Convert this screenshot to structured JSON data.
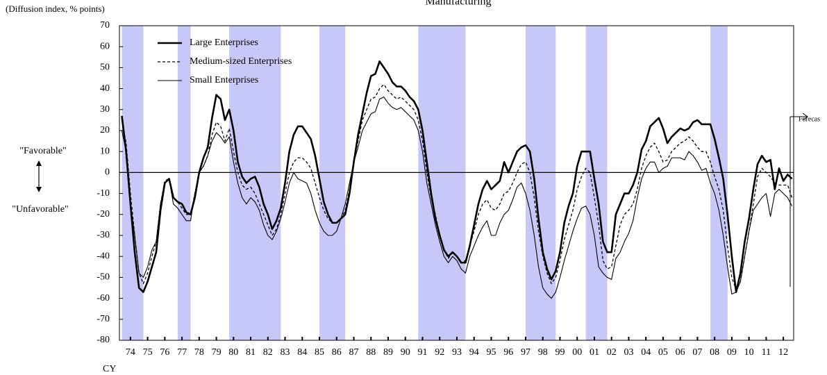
{
  "chart_data": {
    "type": "line",
    "title": "Manufacturing",
    "y_axis_label": "(Diffusion index, % points)",
    "x_axis_label": "CY",
    "annotations": {
      "favorable": "\"Favorable\"",
      "unfavorable": "\"Unfavorable\"",
      "forecast": "Forecas"
    },
    "xlim": [
      1973.86,
      2013.1
    ],
    "ylim": [
      -80,
      70
    ],
    "yticks": [
      70,
      60,
      50,
      40,
      30,
      20,
      10,
      0,
      -10,
      -20,
      -30,
      -40,
      -50,
      -60,
      -70,
      -80
    ],
    "xticks": [
      {
        "value": 1974.5,
        "label": "74"
      },
      {
        "value": 1975.5,
        "label": "75"
      },
      {
        "value": 1976.5,
        "label": "76"
      },
      {
        "value": 1977.5,
        "label": "77"
      },
      {
        "value": 1978.5,
        "label": "78"
      },
      {
        "value": 1979.5,
        "label": "79"
      },
      {
        "value": 1980.5,
        "label": "80"
      },
      {
        "value": 1981.5,
        "label": "81"
      },
      {
        "value": 1982.5,
        "label": "82"
      },
      {
        "value": 1983.5,
        "label": "83"
      },
      {
        "value": 1984.5,
        "label": "84"
      },
      {
        "value": 1985.5,
        "label": "85"
      },
      {
        "value": 1986.5,
        "label": "86"
      },
      {
        "value": 1987.5,
        "label": "87"
      },
      {
        "value": 1988.5,
        "label": "88"
      },
      {
        "value": 1989.5,
        "label": "89"
      },
      {
        "value": 1990.5,
        "label": "90"
      },
      {
        "value": 1991.5,
        "label": "91"
      },
      {
        "value": 1992.5,
        "label": "92"
      },
      {
        "value": 1993.5,
        "label": "93"
      },
      {
        "value": 1994.5,
        "label": "94"
      },
      {
        "value": 1995.5,
        "label": "95"
      },
      {
        "value": 1996.5,
        "label": "96"
      },
      {
        "value": 1997.5,
        "label": "97"
      },
      {
        "value": 1998.5,
        "label": "98"
      },
      {
        "value": 1999.5,
        "label": "99"
      },
      {
        "value": 2000.5,
        "label": "00"
      },
      {
        "value": 2001.5,
        "label": "01"
      },
      {
        "value": 2002.5,
        "label": "02"
      },
      {
        "value": 2003.5,
        "label": "03"
      },
      {
        "value": 2004.5,
        "label": "04"
      },
      {
        "value": 2005.5,
        "label": "05"
      },
      {
        "value": 2006.5,
        "label": "06"
      },
      {
        "value": 2007.5,
        "label": "07"
      },
      {
        "value": 2008.5,
        "label": "08"
      },
      {
        "value": 2009.5,
        "label": "09"
      },
      {
        "value": 2010.5,
        "label": "10"
      },
      {
        "value": 2011.5,
        "label": "11"
      },
      {
        "value": 2012.5,
        "label": "12"
      }
    ],
    "grid": false,
    "zero_line": true,
    "legend": "upper left",
    "shade_color": "#c8c8f8",
    "shaded_periods": [
      {
        "start": 1974,
        "end": 1975.25
      },
      {
        "start": 1977.25,
        "end": 1978
      },
      {
        "start": 1980.25,
        "end": 1983.25
      },
      {
        "start": 1985.5,
        "end": 1987
      },
      {
        "start": 1991.25,
        "end": 1994
      },
      {
        "start": 1997.5,
        "end": 1999.25
      },
      {
        "start": 2001,
        "end": 2002.25
      },
      {
        "start": 2008.25,
        "end": 2009.25
      }
    ],
    "x": [
      1974,
      1974.25,
      1974.5,
      1974.75,
      1975,
      1975.25,
      1975.5,
      1975.75,
      1976,
      1976.25,
      1976.5,
      1976.75,
      1977,
      1977.25,
      1977.5,
      1977.75,
      1978,
      1978.25,
      1978.5,
      1978.75,
      1979,
      1979.25,
      1979.5,
      1979.75,
      1980,
      1980.25,
      1980.5,
      1980.75,
      1981,
      1981.25,
      1981.5,
      1981.75,
      1982,
      1982.25,
      1982.5,
      1982.75,
      1983,
      1983.25,
      1983.5,
      1983.75,
      1984,
      1984.25,
      1984.5,
      1984.75,
      1985,
      1985.25,
      1985.5,
      1985.75,
      1986,
      1986.25,
      1986.5,
      1986.75,
      1987,
      1987.25,
      1987.5,
      1987.75,
      1988,
      1988.25,
      1988.5,
      1988.75,
      1989,
      1989.25,
      1989.5,
      1989.75,
      1990,
      1990.25,
      1990.5,
      1990.75,
      1991,
      1991.25,
      1991.5,
      1991.75,
      1992,
      1992.25,
      1992.5,
      1992.75,
      1993,
      1993.25,
      1993.5,
      1993.75,
      1994,
      1994.25,
      1994.5,
      1994.75,
      1995,
      1995.25,
      1995.5,
      1995.75,
      1996,
      1996.25,
      1996.5,
      1996.75,
      1997,
      1997.25,
      1997.5,
      1997.75,
      1998,
      1998.25,
      1998.5,
      1998.75,
      1999,
      1999.25,
      1999.5,
      1999.75,
      2000,
      2000.25,
      2000.5,
      2000.75,
      2001,
      2001.25,
      2001.5,
      2001.75,
      2002,
      2002.25,
      2002.5,
      2002.75,
      2003,
      2003.25,
      2003.5,
      2003.75,
      2004,
      2004.25,
      2004.5,
      2004.75,
      2005,
      2005.25,
      2005.5,
      2005.75,
      2006,
      2006.25,
      2006.5,
      2006.75,
      2007,
      2007.25,
      2007.5,
      2007.75,
      2008,
      2008.25,
      2008.5,
      2008.75,
      2009,
      2009.25,
      2009.5,
      2009.75,
      2010,
      2010.25,
      2010.5,
      2010.75,
      2011,
      2011.25,
      2011.5,
      2011.75,
      2012,
      2012.25,
      2012.5,
      2012.75,
      2013
    ],
    "series": [
      {
        "name": "Large Enterprises",
        "color": "#000000",
        "linewidth": 2.6,
        "linestyle": "solid",
        "values": [
          27,
          10,
          -15,
          -38,
          -55,
          -57,
          -52,
          -45,
          -38,
          -18,
          -5,
          -3,
          -12,
          -14,
          -15,
          -19,
          -20,
          -12,
          0,
          7,
          12,
          26,
          37,
          35,
          25,
          30,
          20,
          5,
          -2,
          -5,
          -3,
          -2,
          -7,
          -15,
          -20,
          -27,
          -23,
          -17,
          -5,
          10,
          18,
          22,
          22,
          19,
          16,
          8,
          -3,
          -14,
          -20,
          -24,
          -24,
          -22,
          -20,
          -10,
          5,
          18,
          28,
          38,
          46,
          47,
          53,
          50,
          47,
          43,
          41,
          41,
          39,
          36,
          34,
          30,
          20,
          5,
          -10,
          -22,
          -30,
          -37,
          -40,
          -38,
          -40,
          -43,
          -43,
          -35,
          -25,
          -15,
          -8,
          -4,
          -8,
          -6,
          -4,
          5,
          0,
          5,
          10,
          12,
          13,
          10,
          -3,
          -22,
          -38,
          -46,
          -51,
          -47,
          -38,
          -24,
          -16,
          -10,
          3,
          10,
          10,
          10,
          -3,
          -15,
          -33,
          -38,
          -38,
          -20,
          -15,
          -10,
          -10,
          -6,
          0,
          11,
          15,
          22,
          24,
          26,
          21,
          14,
          17,
          19,
          21,
          20,
          21,
          24,
          25,
          23,
          23,
          23,
          16,
          7,
          -3,
          -20,
          -40,
          -57,
          -48,
          -33,
          -22,
          -8,
          4,
          8,
          5,
          6,
          -8,
          2,
          -4,
          -1,
          -3
        ]
      },
      {
        "name": "Medium-sized Enterprises",
        "color": "#000000",
        "linewidth": 1.3,
        "linestyle": "dashed",
        "values": [
          25,
          14,
          -10,
          -30,
          -48,
          -53,
          -48,
          -40,
          -33,
          -15,
          -4,
          -3,
          -12,
          -14,
          -17,
          -20,
          -20,
          -10,
          0,
          3,
          8,
          18,
          24,
          22,
          15,
          21,
          10,
          0,
          -6,
          -8,
          -7,
          -10,
          -15,
          -20,
          -25,
          -30,
          -27,
          -20,
          -10,
          0,
          5,
          7,
          7,
          5,
          2,
          -5,
          -12,
          -18,
          -22,
          -24,
          -24,
          -22,
          -18,
          -8,
          5,
          15,
          25,
          30,
          35,
          36,
          40,
          42,
          39,
          37,
          35,
          36,
          34,
          32,
          30,
          25,
          15,
          0,
          -12,
          -20,
          -30,
          -37,
          -41,
          -38,
          -40,
          -43,
          -42,
          -35,
          -28,
          -20,
          -15,
          -13,
          -17,
          -18,
          -15,
          -10,
          -9,
          -5,
          0,
          4,
          5,
          0,
          -12,
          -28,
          -40,
          -48,
          -53,
          -50,
          -42,
          -32,
          -25,
          -18,
          -8,
          -2,
          2,
          0,
          -12,
          -25,
          -42,
          -46,
          -45,
          -35,
          -25,
          -20,
          -18,
          -15,
          -8,
          2,
          8,
          12,
          14,
          10,
          5,
          6,
          10,
          12,
          14,
          15,
          17,
          15,
          12,
          10,
          10,
          5,
          -2,
          -8,
          -18,
          -35,
          -50,
          -56,
          -52,
          -40,
          -28,
          -15,
          -2,
          2,
          0,
          -2,
          -5,
          -6,
          -6,
          -6,
          -12
        ]
      },
      {
        "name": "Small Enterprises",
        "color": "#000000",
        "linewidth": 1.1,
        "linestyle": "solid",
        "values": [
          20,
          10,
          -15,
          -30,
          -48,
          -50,
          -45,
          -37,
          -33,
          -15,
          -5,
          -3,
          -15,
          -17,
          -20,
          -23,
          -23,
          -10,
          0,
          3,
          8,
          15,
          19,
          17,
          14,
          17,
          5,
          -5,
          -12,
          -15,
          -12,
          -14,
          -18,
          -25,
          -30,
          -32,
          -28,
          -22,
          -14,
          -5,
          0,
          -3,
          -4,
          -5,
          -10,
          -18,
          -24,
          -28,
          -30,
          -30,
          -28,
          -22,
          -15,
          -5,
          5,
          12,
          20,
          24,
          28,
          29,
          35,
          36,
          33,
          31,
          30,
          31,
          29,
          27,
          25,
          20,
          10,
          -5,
          -15,
          -25,
          -33,
          -40,
          -43,
          -40,
          -42,
          -46,
          -48,
          -40,
          -35,
          -30,
          -26,
          -23,
          -30,
          -30,
          -24,
          -20,
          -18,
          -13,
          -7,
          -5,
          -10,
          -18,
          -30,
          -45,
          -55,
          -58,
          -60,
          -57,
          -50,
          -42,
          -35,
          -28,
          -22,
          -17,
          -16,
          -20,
          -30,
          -45,
          -48,
          -50,
          -51,
          -41,
          -38,
          -33,
          -29,
          -23,
          -12,
          -3,
          2,
          5,
          5,
          0,
          2,
          3,
          7,
          7,
          7,
          6,
          10,
          8,
          5,
          1,
          2,
          -5,
          -10,
          -18,
          -30,
          -45,
          -58,
          -57,
          -52,
          -40,
          -28,
          -18,
          -15,
          -12,
          -10,
          -21,
          -10,
          -8,
          -10,
          -12,
          -16
        ]
      }
    ]
  }
}
